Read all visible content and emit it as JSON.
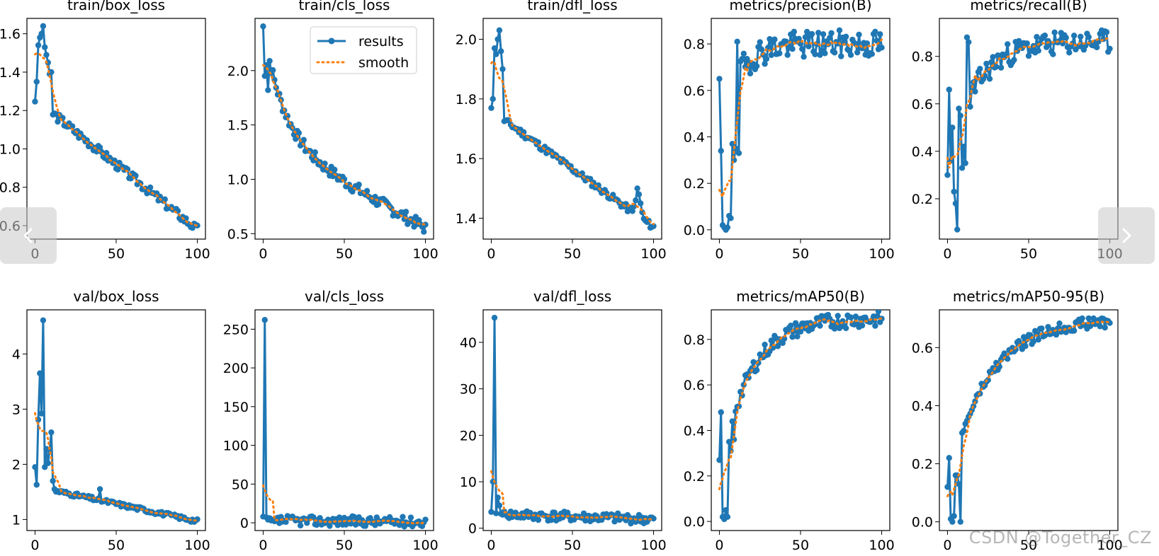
{
  "legend": {
    "results": "results",
    "smooth": "smooth"
  },
  "colors": {
    "results": "#1f77b4",
    "smooth": "#ff7f0e",
    "axes": "#000000",
    "nav_bg": "#c8c8c8"
  },
  "navigation": {
    "prev_icon": "chevron-left-icon",
    "next_icon": "chevron-right-icon"
  },
  "watermark": "CSDN @Together_CZ",
  "chart_data": [
    {
      "type": "line",
      "title": "train/box_loss",
      "xlim": [
        -5,
        105
      ],
      "ylim": [
        0.53,
        1.68
      ],
      "xticks": [
        0,
        50,
        100
      ],
      "xtick_labels": [
        "0",
        "50",
        "100"
      ],
      "yticks": [
        0.6,
        0.8,
        1.0,
        1.2,
        1.4,
        1.6
      ],
      "ytick_labels": [
        "0.6",
        "0.8",
        "1.0",
        "1.2",
        "1.4",
        "1.6"
      ],
      "y_start": 1.26,
      "y_end": 0.58,
      "decay": "linear",
      "shape": 0.08,
      "noise": 0.035,
      "seed": 3,
      "peaks": [
        [
          1,
          1.35
        ],
        [
          2,
          1.54
        ],
        [
          3,
          1.58
        ],
        [
          4,
          1.6
        ],
        [
          5,
          1.64
        ],
        [
          6,
          1.53
        ],
        [
          7,
          1.49
        ],
        [
          8,
          1.45
        ],
        [
          9,
          1.39
        ],
        [
          10,
          1.4
        ]
      ]
    },
    {
      "type": "line",
      "title": "train/cls_loss",
      "xlim": [
        -5,
        105
      ],
      "ylim": [
        0.45,
        2.48
      ],
      "xticks": [
        0,
        50,
        100
      ],
      "xtick_labels": [
        "0",
        "50",
        "100"
      ],
      "yticks": [
        0.5,
        1.0,
        1.5,
        2.0
      ],
      "ytick_labels": [
        "0.5",
        "1.0",
        "1.5",
        "2.0"
      ],
      "y_start": 2.4,
      "y_end": 0.55,
      "decay": "exp_linear",
      "shape": 0.09,
      "noise": 0.03,
      "seed": 7,
      "legend": true,
      "peaks": [
        [
          1,
          1.95
        ],
        [
          2,
          2.05
        ],
        [
          3,
          1.82
        ]
      ]
    },
    {
      "type": "line",
      "title": "train/dfl_loss",
      "xlim": [
        -5,
        105
      ],
      "ylim": [
        1.33,
        2.07
      ],
      "xticks": [
        0,
        50,
        100
      ],
      "xtick_labels": [
        "0",
        "50",
        "100"
      ],
      "yticks": [
        1.4,
        1.6,
        1.8,
        2.0
      ],
      "ytick_labels": [
        "1.4",
        "1.6",
        "1.8",
        "2.0"
      ],
      "y_start": 1.76,
      "y_end": 1.37,
      "decay": "linear",
      "shape": 0.06,
      "noise": 0.03,
      "seed": 11,
      "peaks": [
        [
          1,
          1.8
        ],
        [
          2,
          1.97
        ],
        [
          3,
          1.95
        ],
        [
          4,
          2.0
        ],
        [
          5,
          2.03
        ],
        [
          6,
          1.96
        ],
        [
          7,
          1.9
        ],
        [
          88,
          1.44
        ],
        [
          89,
          1.46
        ],
        [
          90,
          1.5
        ],
        [
          91,
          1.48
        ],
        [
          92,
          1.45
        ],
        [
          93,
          1.42
        ]
      ]
    },
    {
      "type": "line",
      "title": "metrics/precision(B)",
      "xlim": [
        -5,
        105
      ],
      "ylim": [
        -0.04,
        0.91
      ],
      "xticks": [
        0,
        50,
        100
      ],
      "xtick_labels": [
        "0",
        "50",
        "100"
      ],
      "yticks": [
        0.0,
        0.2,
        0.4,
        0.6,
        0.8
      ],
      "ytick_labels": [
        "0.0",
        "0.2",
        "0.4",
        "0.6",
        "0.8"
      ],
      "y_start": 0.35,
      "y_end": 0.8,
      "decay": "rise",
      "shape": 0.1,
      "noise": 0.07,
      "seed": 19,
      "peaks": [
        [
          0,
          0.65
        ],
        [
          1,
          0.34
        ],
        [
          2,
          0.02
        ],
        [
          3,
          0.01
        ],
        [
          4,
          0.0
        ],
        [
          5,
          0.01
        ],
        [
          6,
          0.06
        ],
        [
          7,
          0.05
        ],
        [
          8,
          0.37
        ],
        [
          9,
          0.3
        ],
        [
          10,
          0.35
        ],
        [
          11,
          0.81
        ],
        [
          12,
          0.33
        ]
      ]
    },
    {
      "type": "line",
      "title": "metrics/recall(B)",
      "xlim": [
        -5,
        105
      ],
      "ylim": [
        0.03,
        0.96
      ],
      "xticks": [
        0,
        50,
        100
      ],
      "xtick_labels": [
        "0",
        "50",
        "100"
      ],
      "yticks": [
        0.2,
        0.4,
        0.6,
        0.8
      ],
      "ytick_labels": [
        "0.2",
        "0.4",
        "0.6",
        "0.8"
      ],
      "y_start": 0.3,
      "y_end": 0.86,
      "decay": "rise",
      "shape": 0.16,
      "noise": 0.06,
      "seed": 23,
      "peaks": [
        [
          0,
          0.3
        ],
        [
          1,
          0.66
        ],
        [
          2,
          0.36
        ],
        [
          3,
          0.5
        ],
        [
          4,
          0.23
        ],
        [
          5,
          0.18
        ],
        [
          6,
          0.07
        ],
        [
          7,
          0.58
        ],
        [
          8,
          0.55
        ],
        [
          9,
          0.33
        ],
        [
          10,
          0.42
        ],
        [
          11,
          0.35
        ],
        [
          12,
          0.88
        ],
        [
          13,
          0.86
        ]
      ]
    },
    {
      "type": "line",
      "title": "val/box_loss",
      "xlim": [
        -5,
        105
      ],
      "ylim": [
        0.8,
        4.8
      ],
      "xticks": [
        0,
        50,
        100
      ],
      "xtick_labels": [
        "0",
        "50",
        "100"
      ],
      "yticks": [
        1,
        2,
        3,
        4
      ],
      "ytick_labels": [
        "1",
        "2",
        "3",
        "4"
      ],
      "y_start": 1.6,
      "y_end": 0.97,
      "decay": "linear",
      "shape": 0.08,
      "noise": 0.06,
      "seed": 31,
      "peaks": [
        [
          0,
          1.95
        ],
        [
          1,
          1.63
        ],
        [
          2,
          2.81
        ],
        [
          3,
          3.65
        ],
        [
          4,
          2.92
        ],
        [
          5,
          4.61
        ],
        [
          6,
          1.95
        ],
        [
          7,
          2.28
        ],
        [
          8,
          2.02
        ],
        [
          9,
          2.26
        ],
        [
          10,
          2.58
        ],
        [
          11,
          1.7
        ],
        [
          12,
          1.55
        ],
        [
          40,
          1.55
        ]
      ]
    },
    {
      "type": "line",
      "title": "val/cls_loss",
      "xlim": [
        -5,
        105
      ],
      "ylim": [
        -10,
        275
      ],
      "xticks": [
        0,
        50,
        100
      ],
      "xtick_labels": [
        "0",
        "50",
        "100"
      ],
      "yticks": [
        0,
        50,
        100,
        150,
        200,
        250
      ],
      "ytick_labels": [
        "0",
        "50",
        "100",
        "150",
        "200",
        "250"
      ],
      "y_start": 3.0,
      "y_end": 1.2,
      "decay": "linear",
      "shape": 0.1,
      "noise": 0.15,
      "seed": 37,
      "peaks": [
        [
          0,
          8
        ],
        [
          1,
          262
        ],
        [
          2,
          7
        ],
        [
          3,
          4
        ],
        [
          4,
          6
        ],
        [
          5,
          3
        ],
        [
          6,
          4
        ],
        [
          7,
          2
        ],
        [
          8,
          3
        ]
      ]
    },
    {
      "type": "line",
      "title": "val/dfl_loss",
      "xlim": [
        -5,
        105
      ],
      "ylim": [
        -0.5,
        47
      ],
      "xticks": [
        0,
        50,
        100
      ],
      "xtick_labels": [
        "0",
        "50",
        "100"
      ],
      "yticks": [
        0,
        10,
        20,
        30,
        40
      ],
      "ytick_labels": [
        "0",
        "10",
        "20",
        "30",
        "40"
      ],
      "y_start": 3.0,
      "y_end": 1.9,
      "decay": "linear",
      "shape": 0.1,
      "noise": 0.15,
      "seed": 41,
      "peaks": [
        [
          0,
          3.5
        ],
        [
          1,
          10.0
        ],
        [
          2,
          45.3
        ],
        [
          3,
          3.2
        ],
        [
          4,
          6.6
        ],
        [
          5,
          4.9
        ],
        [
          6,
          3.1
        ],
        [
          7,
          2.9
        ],
        [
          8,
          3.6
        ],
        [
          9,
          3.0
        ]
      ]
    },
    {
      "type": "line",
      "title": "metrics/mAP50(B)",
      "xlim": [
        -5,
        105
      ],
      "ylim": [
        -0.04,
        0.93
      ],
      "xticks": [
        0,
        50,
        100
      ],
      "xtick_labels": [
        "0",
        "50",
        "100"
      ],
      "yticks": [
        0.0,
        0.2,
        0.4,
        0.6,
        0.8
      ],
      "ytick_labels": [
        "0.0",
        "0.2",
        "0.4",
        "0.6",
        "0.8"
      ],
      "y_start": 0.2,
      "y_end": 0.89,
      "decay": "rise",
      "shape": 0.18,
      "noise": 0.04,
      "seed": 43,
      "peaks": [
        [
          0,
          0.27
        ],
        [
          1,
          0.48
        ],
        [
          2,
          0.02
        ],
        [
          3,
          0.01
        ],
        [
          4,
          0.05
        ],
        [
          5,
          0.02
        ],
        [
          6,
          0.35
        ],
        [
          7,
          0.31
        ],
        [
          8,
          0.44
        ],
        [
          9,
          0.36
        ]
      ]
    },
    {
      "type": "line",
      "title": "metrics/mAP50-95(B)",
      "xlim": [
        -5,
        105
      ],
      "ylim": [
        -0.03,
        0.73
      ],
      "xticks": [
        0,
        50,
        100
      ],
      "xtick_labels": [
        "0",
        "50",
        "100"
      ],
      "yticks": [
        0.0,
        0.2,
        0.4,
        0.6
      ],
      "ytick_labels": [
        "0.0",
        "0.2",
        "0.4",
        "0.6"
      ],
      "y_start": 0.12,
      "y_end": 0.69,
      "decay": "rise",
      "shape": 0.24,
      "noise": 0.03,
      "seed": 47,
      "peaks": [
        [
          0,
          0.12
        ],
        [
          1,
          0.22
        ],
        [
          2,
          0.01
        ],
        [
          3,
          0.0
        ],
        [
          4,
          0.02
        ],
        [
          5,
          0.16
        ],
        [
          6,
          0.16
        ],
        [
          7,
          0.13
        ],
        [
          8,
          0.0
        ]
      ]
    }
  ]
}
